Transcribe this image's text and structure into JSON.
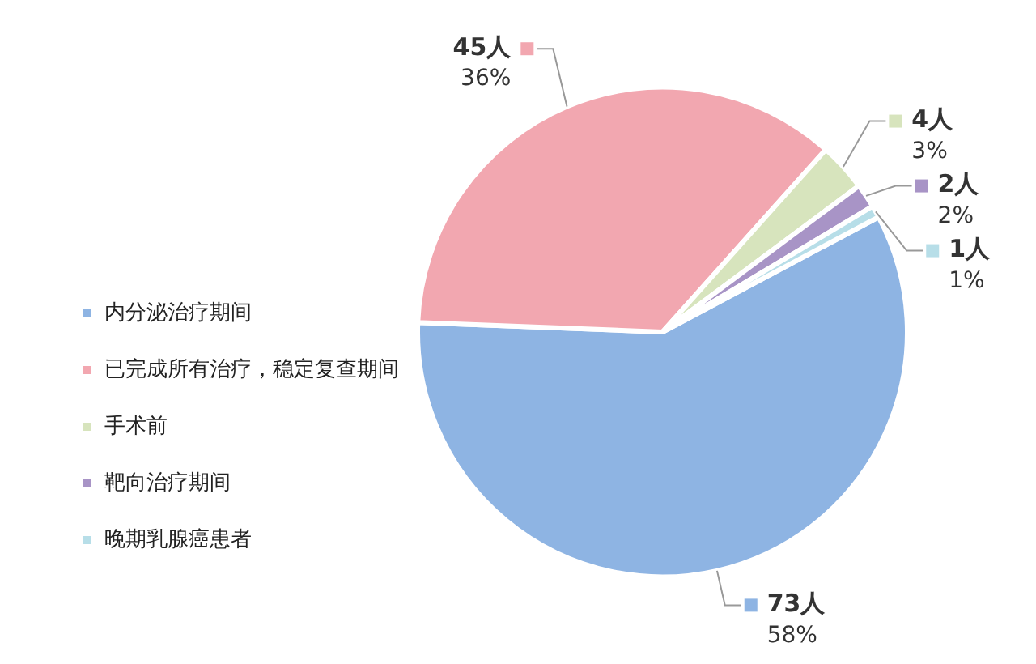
{
  "chart_data": {
    "type": "pie",
    "categories": [
      "内分泌治疗期间",
      "已完成所有治疗，稳定复查期间",
      "手术前",
      "靶向治疗期间",
      "晚期乳腺癌患者"
    ],
    "values": [
      73,
      45,
      4,
      2,
      1
    ],
    "colors": [
      "#8eb4e3",
      "#f2a7b0",
      "#d7e4bd",
      "#a894c6",
      "#b7dee8"
    ],
    "value_labels": [
      "73人\n58%",
      "45人\n36%",
      "4人\n3%",
      "2人\n2%",
      "1人\n1%"
    ],
    "legend": "bottom left"
  }
}
